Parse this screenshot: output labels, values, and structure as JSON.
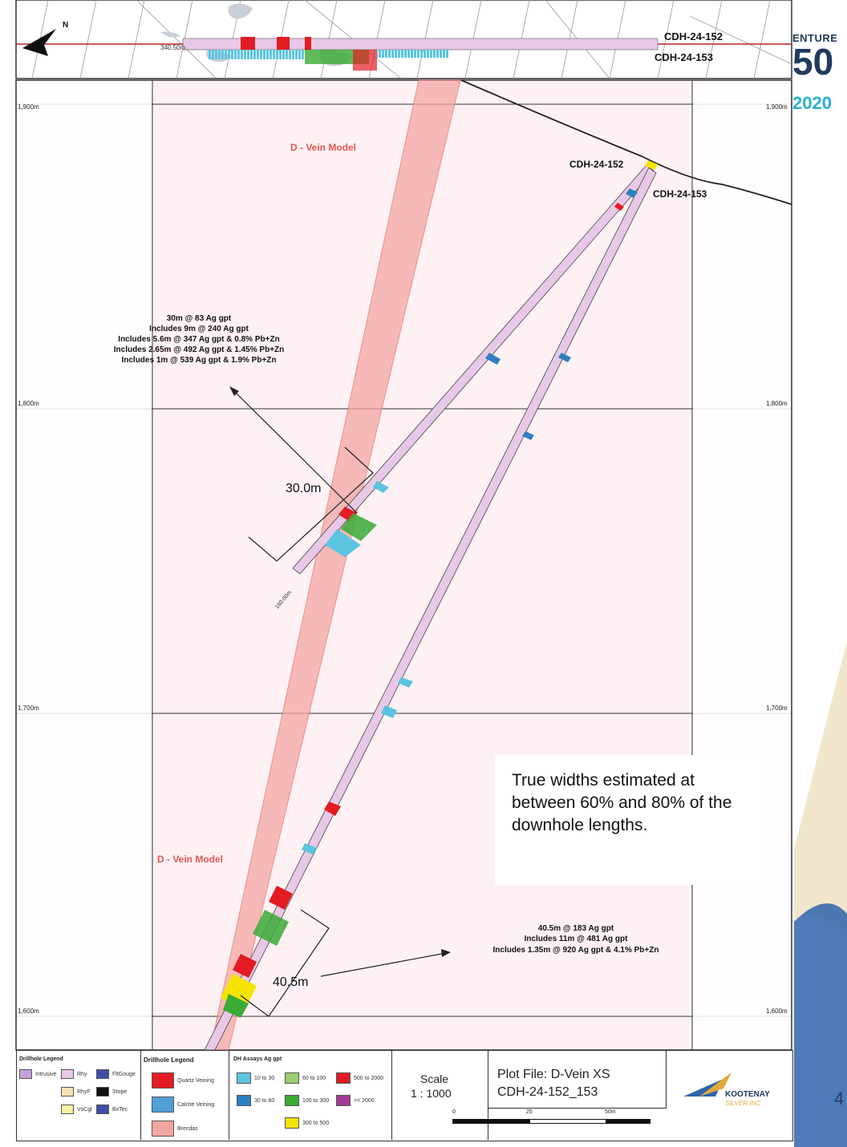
{
  "grid_labels": {
    "y_1900": "1,900m",
    "y_1800": "1,800m",
    "y_1700": "1,700m",
    "y_1600": "1,600m"
  },
  "plan_view": {
    "depth_label": "340.50m",
    "hole_a": "CDH-24-152",
    "hole_b": "CDH-24-153"
  },
  "section": {
    "hole_a": "CDH-24-152",
    "hole_b": "CDH-24-153",
    "vein_label_top": "D - Vein Model",
    "vein_label_bottom": "D - Vein Model",
    "depth_tick": "180.00m"
  },
  "intercept_upper": {
    "width_label": "30.0m",
    "lines": [
      "30m @ 83 Ag gpt",
      "Includes 9m @ 240 Ag gpt",
      "Includes 5.6m @ 347 Ag gpt & 0.8% Pb+Zn",
      "Includes 2.65m @ 492 Ag gpt & 1.45% Pb+Zn",
      "Includes 1m @ 539 Ag gpt & 1.9% Pb+Zn"
    ]
  },
  "intercept_lower": {
    "width_label": "40.5m",
    "lines": [
      "40.5m @ 183 Ag gpt",
      "Includes 11m @ 481 Ag gpt",
      "Includes 1.35m @ 920 Ag gpt & 4.1% Pb+Zn"
    ]
  },
  "note": "True widths estimated at between 60% and 80% of the downhole lengths.",
  "branding": {
    "venture_word": "ENTURE",
    "venture_num": "50",
    "venture_year": "2020",
    "company": "KOOTENAY",
    "company_sub": "SILVER INC",
    "page_number": "4"
  },
  "legend": {
    "lithology_title": "Drillhole Legend",
    "lithology_items": [
      "Intrusive",
      "Rhy",
      "FltGouge",
      "RhyF",
      "Stope",
      "VsCgl",
      "BxTec"
    ],
    "veining_title": "Drillhole Legend",
    "veining_items": [
      "Quartz Veining",
      "Calcite Veining",
      "Brecdas"
    ],
    "assay_title": "DH Assays Ag gpt",
    "assay_items": [
      "10 to 30",
      "30 to 60",
      "60 to 100",
      "100 to 300",
      "300 to 500",
      "500 to 2000",
      ">= 2000"
    ],
    "scale_title": "Scale",
    "scale_value": "1 : 1000",
    "scale_ticks": [
      "0",
      "25",
      "50m"
    ],
    "plot_file_line1": "Plot File: D-Vein XS",
    "plot_file_line2": "CDH-24-152_153"
  },
  "colors": {
    "vein_zone": "#f4a7a3",
    "hole_fill": "#e8c8e6",
    "quartz": "#e31b23",
    "calcite": "#4f9fd8",
    "assay_10_30": "#5bc5e0",
    "assay_30_60": "#2e7fc1",
    "assay_60_100": "#9ccf6e",
    "assay_100_300": "#3aaa35",
    "assay_300_500": "#f4e400",
    "assay_500_2000": "#e31b23",
    "assay_2000": "#a23a96"
  }
}
